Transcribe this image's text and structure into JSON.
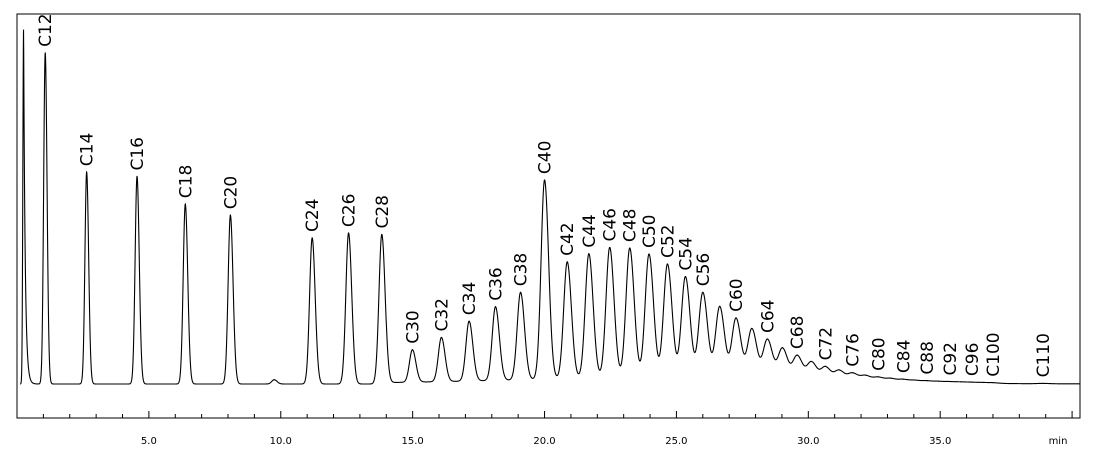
{
  "chart_data": {
    "type": "line",
    "title": "",
    "xlabel": "",
    "ylabel": "",
    "x_unit": "min",
    "xlim": [
      0.0,
      40.3
    ],
    "ylim": [
      0,
      100
    ],
    "grid": false,
    "x_ticks": [
      "5.0",
      "10.0",
      "15.0",
      "20.0",
      "25.0",
      "30.0",
      "35.0"
    ],
    "solvent_front": {
      "x": 0.25,
      "y": 100
    },
    "peaks": [
      {
        "label": "C12",
        "x": 1.07,
        "y": 93.0
      },
      {
        "label": "C14",
        "x": 2.64,
        "y": 59.5
      },
      {
        "label": "C16",
        "x": 4.55,
        "y": 58.3
      },
      {
        "label": "C18",
        "x": 6.38,
        "y": 50.5
      },
      {
        "label": "C20",
        "x": 8.09,
        "y": 47.4
      },
      {
        "label": "",
        "x": 9.75,
        "y": 1.2
      },
      {
        "label": "C24",
        "x": 11.19,
        "y": 41.0
      },
      {
        "label": "C26",
        "x": 12.57,
        "y": 42.4
      },
      {
        "label": "C28",
        "x": 13.83,
        "y": 42.0
      },
      {
        "label": "C30",
        "x": 14.99,
        "y": 9.1
      },
      {
        "label": "C32",
        "x": 16.09,
        "y": 12.4
      },
      {
        "label": "C34",
        "x": 17.14,
        "y": 16.8
      },
      {
        "label": "C36",
        "x": 18.14,
        "y": 20.7
      },
      {
        "label": "C38",
        "x": 19.09,
        "y": 24.6
      },
      {
        "label": "C40",
        "x": 20.0,
        "y": 56.0
      },
      {
        "label": "C42",
        "x": 20.86,
        "y": 32.9
      },
      {
        "label": "C44",
        "x": 21.68,
        "y": 35.1
      },
      {
        "label": "C46",
        "x": 22.47,
        "y": 36.8
      },
      {
        "label": "C48",
        "x": 23.23,
        "y": 36.6
      },
      {
        "label": "C50",
        "x": 23.96,
        "y": 34.9
      },
      {
        "label": "C52",
        "x": 24.66,
        "y": 32.1
      },
      {
        "label": "C54",
        "x": 25.34,
        "y": 28.6
      },
      {
        "label": "C56",
        "x": 26.0,
        "y": 24.2
      },
      {
        "label": "",
        "x": 26.64,
        "y": 20.3
      },
      {
        "label": "C60",
        "x": 27.26,
        "y": 17.1
      },
      {
        "label": "",
        "x": 27.86,
        "y": 14.2
      },
      {
        "label": "C64",
        "x": 28.45,
        "y": 11.3
      },
      {
        "label": "",
        "x": 29.02,
        "y": 8.9
      },
      {
        "label": "C68",
        "x": 29.58,
        "y": 6.9
      },
      {
        "label": "",
        "x": 30.12,
        "y": 5.2
      },
      {
        "label": "C72",
        "x": 30.65,
        "y": 3.9
      },
      {
        "label": "",
        "x": 31.17,
        "y": 3.0
      },
      {
        "label": "C76",
        "x": 31.68,
        "y": 2.3
      },
      {
        "label": "",
        "x": 32.17,
        "y": 1.7
      },
      {
        "label": "C80",
        "x": 32.66,
        "y": 1.3
      },
      {
        "label": "",
        "x": 33.13,
        "y": 1.0
      },
      {
        "label": "C84",
        "x": 33.6,
        "y": 0.8
      },
      {
        "label": "",
        "x": 34.05,
        "y": 0.6
      },
      {
        "label": "C88",
        "x": 34.5,
        "y": 0.5
      },
      {
        "label": "",
        "x": 34.94,
        "y": 0.4
      },
      {
        "label": "C92",
        "x": 35.37,
        "y": 0.35
      },
      {
        "label": "",
        "x": 35.79,
        "y": 0.3
      },
      {
        "label": "C96",
        "x": 36.2,
        "y": 0.25
      },
      {
        "label": "",
        "x": 36.61,
        "y": 0.2
      },
      {
        "label": "C100",
        "x": 37.01,
        "y": 0.18
      },
      {
        "label": "C110",
        "x": 38.89,
        "y": 0.1
      }
    ]
  }
}
